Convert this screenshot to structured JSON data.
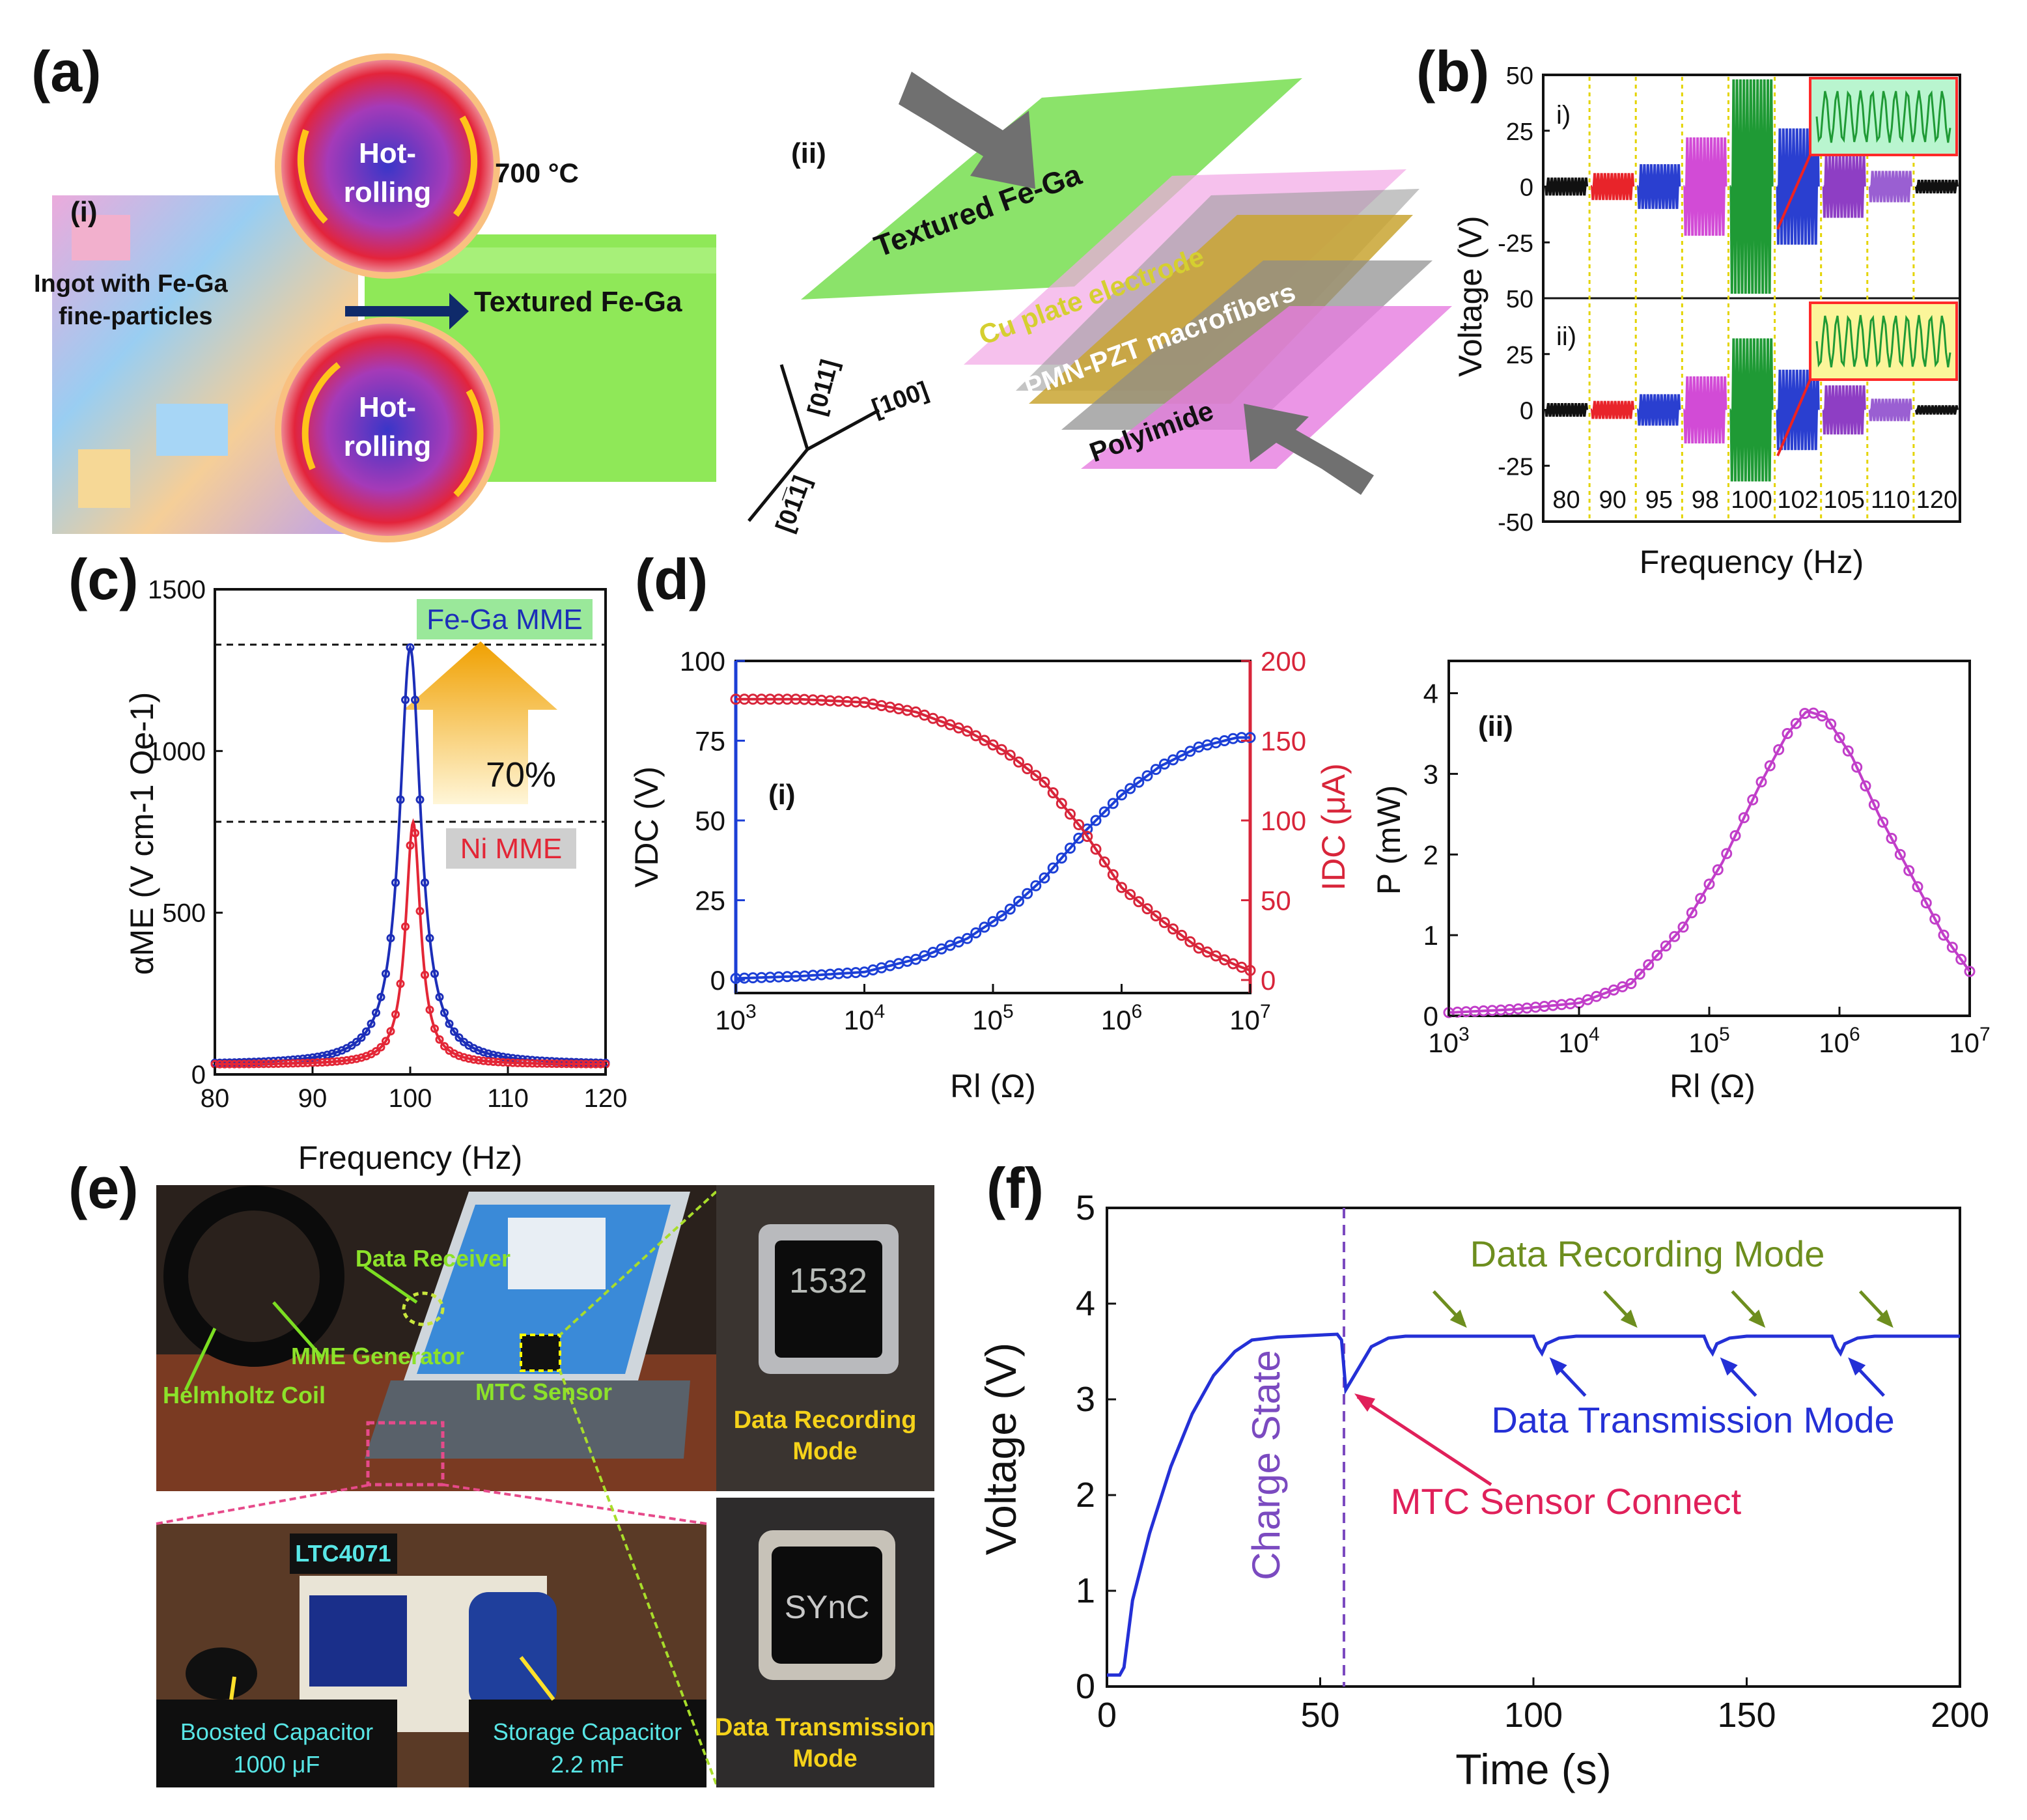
{
  "panel_labels": {
    "a": "(a)",
    "b": "(b)",
    "c": "(c)",
    "d": "(d)",
    "e": "(e)",
    "f": "(f)"
  },
  "panel_a": {
    "sub_i": "(i)",
    "sub_ii": "(ii)",
    "roller_line1": "Hot-",
    "roller_line2": "rolling",
    "temperature": "700 °C",
    "ingot_line1": "Ingot with Fe-Ga",
    "ingot_line2": "fine-particles",
    "textured": "Textured Fe-Ga",
    "layers": [
      "Textured Fe-Ga",
      "Cu plate electrode",
      "PMN-PZT macrofibers",
      "Polyimide"
    ],
    "axes": [
      "[011]",
      "[100]",
      "[01̅1]"
    ]
  },
  "panel_e": {
    "labels": {
      "data_receiver": "Data Receiver",
      "mme_generator": "MME Generator",
      "helmholtz": "Helmholtz Coil",
      "mtc_sensor": "MTC Sensor",
      "ltc": "LTC4071",
      "boosted_line1": "Boosted Capacitor",
      "boosted_line2": "1000 μF",
      "storage_line1": "Storage Capacitor",
      "storage_line2": "2.2 mF",
      "recording_line1": "Data Recording",
      "recording_line2": "Mode",
      "transmission_line1": "Data Transmission",
      "transmission_line2": "Mode"
    },
    "watch_display_1": "1532",
    "watch_display_2": "SYnC"
  },
  "chart_data": [
    {
      "id": "b",
      "type": "line",
      "xlabel": "Frequency (Hz)",
      "ylabel": "Voltage (V)",
      "subplots": [
        "i)",
        "ii)"
      ],
      "yticks_i": [
        50,
        25,
        0,
        -25
      ],
      "yticks_ii": [
        50,
        25,
        0,
        -25,
        -50
      ],
      "segments": [
        "80",
        "90",
        "95",
        "98",
        "100",
        "102",
        "105",
        "110",
        "120"
      ],
      "segment_colors": [
        "#111111",
        "#e8242a",
        "#2a3fd0",
        "#d24bd6",
        "#1f9a35",
        "#2a3fd0",
        "#8e3ec4",
        "#9a5fd2",
        "#111111"
      ],
      "amplitude_i": [
        4,
        6,
        10,
        22,
        48,
        26,
        14,
        7,
        3
      ],
      "amplitude_ii": [
        3,
        4,
        7,
        15,
        32,
        18,
        11,
        5,
        2
      ],
      "ylim": [
        -50,
        50
      ]
    },
    {
      "id": "c",
      "type": "line",
      "xlabel": "Frequency (Hz)",
      "ylabel": "αME (V cm-1 Oe-1)",
      "xlim": [
        80,
        120
      ],
      "ylim": [
        0,
        1500
      ],
      "xticks": [
        80,
        90,
        100,
        110,
        120
      ],
      "yticks": [
        0,
        500,
        1000,
        1500
      ],
      "series": [
        {
          "name": "Fe-Ga MME",
          "color": "#1c2eb8",
          "peak": 1320,
          "f0": 100,
          "gamma": 1.32
        },
        {
          "name": "Ni MME",
          "color": "#e32636",
          "peak": 780,
          "f0": 100.3,
          "gamma": 0.92
        }
      ],
      "annotations": {
        "fe_label": "Fe-Ga MME",
        "ni_label": "Ni MME",
        "increase": "70%"
      }
    },
    {
      "id": "d-i",
      "type": "line",
      "subtitle": "(i)",
      "xlabel": "Rl (Ω)",
      "ylabel_left": "VDC (V)",
      "ylabel_right": "IDC (μA)",
      "xlim_log10": [
        3,
        7
      ],
      "ylim_left": [
        0,
        100
      ],
      "ylim_right": [
        0,
        200
      ],
      "yticks_left": [
        0,
        25,
        50,
        75,
        100
      ],
      "yticks_right": [
        0,
        50,
        100,
        150,
        200
      ],
      "xtick_exponents": [
        3,
        4,
        5,
        6,
        7
      ],
      "series": [
        {
          "name": "VDC",
          "color": "#1c3fd6",
          "log10R": [
            3.0,
            3.5,
            4.0,
            4.4,
            4.8,
            5.1,
            5.4,
            5.7,
            6.0,
            6.3,
            6.6,
            6.9,
            7.0
          ],
          "values": [
            0.5,
            1.2,
            2.5,
            6.5,
            13,
            21,
            32,
            46,
            58,
            67,
            73,
            76,
            76
          ]
        },
        {
          "name": "IDC",
          "color": "#d8253a",
          "log10R": [
            3.0,
            3.5,
            4.0,
            4.4,
            4.8,
            5.1,
            5.4,
            5.7,
            6.0,
            6.3,
            6.6,
            6.9,
            7.0
          ],
          "values": [
            176,
            176,
            174,
            168,
            156,
            143,
            124,
            94,
            58,
            38,
            20,
            9,
            6
          ]
        }
      ]
    },
    {
      "id": "d-ii",
      "type": "line",
      "subtitle": "(ii)",
      "xlabel": "Rl (Ω)",
      "ylabel": "P (mW)",
      "xlim_log10": [
        3,
        7
      ],
      "ylim": [
        0,
        4.4
      ],
      "yticks": [
        0,
        1,
        2,
        3,
        4
      ],
      "xtick_exponents": [
        3,
        4,
        5,
        6,
        7
      ],
      "series": [
        {
          "name": "P",
          "color": "#c13ec9",
          "log10R": [
            3.0,
            3.5,
            4.0,
            4.4,
            4.8,
            5.1,
            5.4,
            5.6,
            5.75,
            5.9,
            6.1,
            6.3,
            6.6,
            6.8,
            7.0
          ],
          "values": [
            0.04,
            0.08,
            0.16,
            0.4,
            1.1,
            1.9,
            2.9,
            3.5,
            3.78,
            3.7,
            3.2,
            2.5,
            1.6,
            1.0,
            0.55
          ]
        }
      ]
    },
    {
      "id": "f",
      "type": "line",
      "xlabel": "Time (s)",
      "ylabel": "Voltage (V)",
      "xlim": [
        0,
        200
      ],
      "ylim": [
        0,
        5
      ],
      "xticks": [
        0,
        50,
        100,
        150,
        200
      ],
      "yticks": [
        0,
        1,
        2,
        3,
        4,
        5
      ],
      "series": [
        {
          "name": "Voltage",
          "color": "#2430d6",
          "x": [
            0,
            3,
            4,
            6,
            10,
            15,
            20,
            25,
            30,
            34,
            40,
            54,
            55,
            56,
            58,
            62,
            66,
            70,
            80,
            100,
            101,
            102,
            103,
            106,
            110,
            140,
            141,
            142,
            143,
            146,
            150,
            170,
            171,
            172,
            173,
            176,
            180,
            200
          ],
          "values": [
            0.12,
            0.12,
            0.2,
            0.9,
            1.6,
            2.3,
            2.85,
            3.25,
            3.5,
            3.62,
            3.65,
            3.68,
            3.62,
            3.1,
            3.25,
            3.55,
            3.64,
            3.66,
            3.66,
            3.66,
            3.55,
            3.48,
            3.58,
            3.64,
            3.66,
            3.66,
            3.55,
            3.48,
            3.58,
            3.64,
            3.66,
            3.66,
            3.55,
            3.48,
            3.58,
            3.64,
            3.66,
            3.66
          ]
        }
      ],
      "vline_x": 55,
      "annotations": {
        "charge": "Charge State",
        "recording": "Data Recording Mode",
        "transmission": "Data Transmission Mode",
        "connect": "MTC Sensor Connect"
      }
    }
  ]
}
